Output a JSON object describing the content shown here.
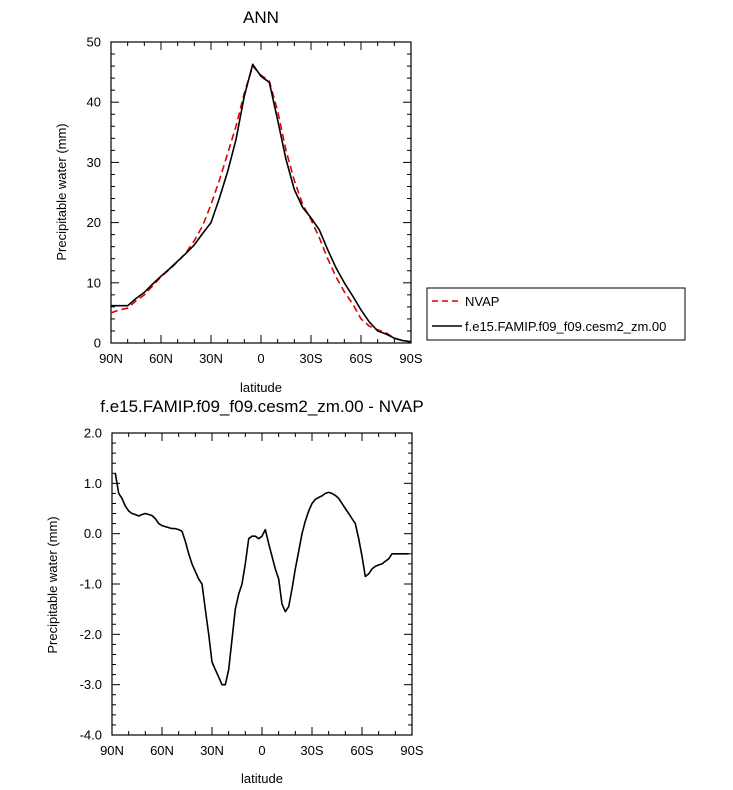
{
  "chart_data": [
    {
      "type": "line",
      "title": "ANN",
      "xlabel": "latitude",
      "ylabel": "Precipitable water (mm)",
      "ylim": [
        0,
        50
      ],
      "xlim": [
        "90N",
        "90S"
      ],
      "xticks": [
        "90N",
        "60N",
        "30N",
        "0",
        "30S",
        "60S",
        "90S"
      ],
      "yticks": [
        "0",
        "10",
        "20",
        "30",
        "40",
        "50"
      ],
      "legend": {
        "placement": "right",
        "entries": [
          "NVAP",
          "f.e15.FAMIP.f09_f09.cesm2_zm.00"
        ]
      },
      "x_latitude_deg_N": [
        90,
        85,
        80,
        75,
        70,
        65,
        60,
        55,
        50,
        45,
        40,
        35,
        30,
        25,
        20,
        15,
        10,
        5,
        0,
        -5,
        -10,
        -15,
        -20,
        -25,
        -30,
        -35,
        -40,
        -45,
        -50,
        -55,
        -60,
        -65,
        -70,
        -75,
        -80,
        -85,
        -90
      ],
      "series": [
        {
          "name": "NVAP",
          "color": "#e00000",
          "dash": "dashed",
          "values": [
            5.0,
            5.5,
            5.8,
            7.0,
            8.0,
            9.5,
            11.0,
            12.2,
            13.5,
            15.0,
            17.0,
            19.5,
            23.0,
            27.0,
            31.5,
            36.0,
            41.5,
            46.0,
            44.5,
            43.5,
            38.5,
            32.0,
            27.0,
            23.0,
            20.5,
            17.5,
            14.0,
            11.0,
            8.5,
            6.5,
            4.0,
            2.8,
            2.2,
            1.7,
            0.8,
            0.4,
            0.2
          ]
        },
        {
          "name": "f.e15.FAMIP.f09_f09.cesm2_zm.00",
          "color": "#000000",
          "dash": "solid",
          "values": [
            6.2,
            6.2,
            6.2,
            7.4,
            8.4,
            9.8,
            11.1,
            12.3,
            13.6,
            14.9,
            16.3,
            18.2,
            20.0,
            24.0,
            28.5,
            33.8,
            41.0,
            46.3,
            44.3,
            43.3,
            37.0,
            30.5,
            25.5,
            22.5,
            20.8,
            18.8,
            15.5,
            12.5,
            10.0,
            7.8,
            5.5,
            3.5,
            2.0,
            1.5,
            0.8,
            0.4,
            0.2
          ]
        }
      ]
    },
    {
      "type": "line",
      "title": "f.e15.FAMIP.f09_f09.cesm2_zm.00 - NVAP",
      "xlabel": "latitude",
      "ylabel": "Precipitable water (mm)",
      "ylim": [
        -4.0,
        2.0
      ],
      "xlim": [
        "90N",
        "90S"
      ],
      "xticks": [
        "90N",
        "60N",
        "30N",
        "0",
        "30S",
        "60S",
        "90S"
      ],
      "yticks": [
        "-4.0",
        "-3.0",
        "-2.0",
        "-1.0",
        "0.0",
        "1.0",
        "2.0"
      ],
      "x_latitude_deg_N": [
        88,
        86,
        84,
        82,
        80,
        78,
        76,
        74,
        72,
        70,
        68,
        66,
        64,
        62,
        60,
        58,
        56,
        54,
        52,
        50,
        48,
        46,
        44,
        42,
        40,
        38,
        36,
        34,
        32,
        30,
        28,
        26,
        24,
        22,
        20,
        18,
        16,
        14,
        12,
        10,
        8,
        6,
        4,
        2,
        0,
        -2,
        -4,
        -6,
        -8,
        -10,
        -12,
        -14,
        -16,
        -18,
        -20,
        -22,
        -24,
        -26,
        -28,
        -30,
        -32,
        -34,
        -36,
        -38,
        -40,
        -42,
        -44,
        -46,
        -48,
        -50,
        -52,
        -54,
        -56,
        -58,
        -60,
        -62,
        -64,
        -66,
        -68,
        -70,
        -72,
        -74,
        -76,
        -78,
        -80,
        -82,
        -84,
        -86,
        -88
      ],
      "series": [
        {
          "name": "",
          "color": "#000000",
          "dash": "solid",
          "values": [
            1.2,
            0.8,
            0.7,
            0.55,
            0.45,
            0.4,
            0.38,
            0.35,
            0.38,
            0.4,
            0.38,
            0.36,
            0.3,
            0.2,
            0.16,
            0.14,
            0.12,
            0.1,
            0.1,
            0.08,
            0.05,
            -0.15,
            -0.4,
            -0.6,
            -0.75,
            -0.9,
            -1.0,
            -1.5,
            -2.0,
            -2.55,
            -2.7,
            -2.85,
            -3.0,
            -3.0,
            -2.7,
            -2.1,
            -1.5,
            -1.2,
            -1.0,
            -0.6,
            -0.1,
            -0.05,
            -0.05,
            -0.1,
            -0.05,
            0.08,
            -0.2,
            -0.45,
            -0.7,
            -0.9,
            -1.4,
            -1.55,
            -1.45,
            -1.1,
            -0.7,
            -0.35,
            0.0,
            0.25,
            0.45,
            0.6,
            0.68,
            0.72,
            0.75,
            0.8,
            0.82,
            0.8,
            0.76,
            0.7,
            0.6,
            0.5,
            0.4,
            0.3,
            0.2,
            -0.1,
            -0.45,
            -0.85,
            -0.8,
            -0.7,
            -0.65,
            -0.62,
            -0.6,
            -0.55,
            -0.5,
            -0.4,
            -0.4,
            -0.4,
            -0.4,
            -0.4,
            -0.4
          ]
        }
      ]
    }
  ]
}
